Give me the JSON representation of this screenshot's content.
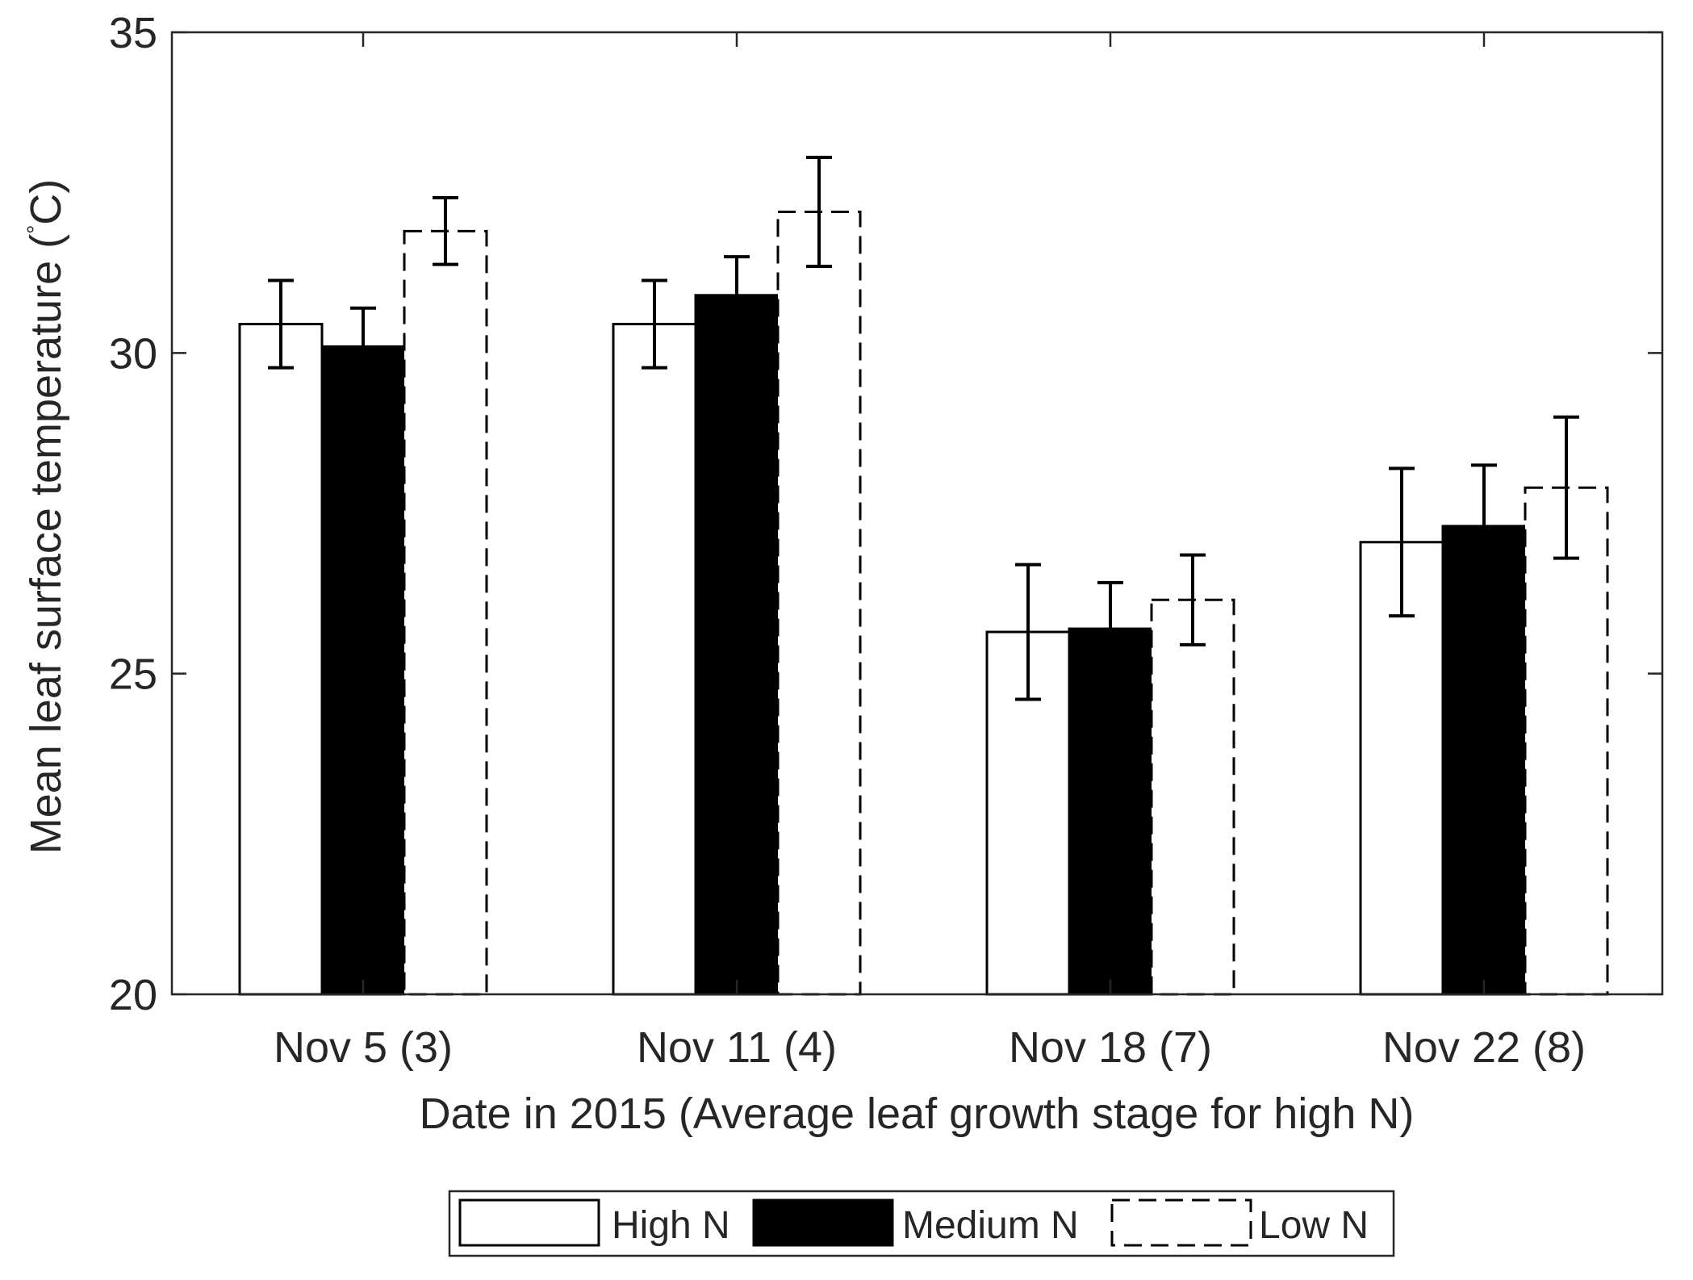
{
  "chart_data": {
    "type": "bar",
    "title": "",
    "xlabel": "Date in 2015 (Average  leaf growth stage for high N)",
    "ylabel": "Mean leaf surface temperature (",
    "ylabel_unit": "C)",
    "ylabel_degree_mark": "°",
    "categories": [
      "Nov 5 (3)",
      "Nov 11 (4)",
      "Nov 18 (7)",
      "Nov 22 (8)"
    ],
    "ylim": [
      20,
      35
    ],
    "yticks": [
      20,
      25,
      30,
      35
    ],
    "ytick_labels": [
      "20",
      "25",
      "30",
      "35"
    ],
    "series": [
      {
        "name": "High N",
        "style": "white-solid",
        "values": [
          30.45,
          30.45,
          25.65,
          27.05
        ],
        "error": [
          0.68,
          0.68,
          1.05,
          1.15
        ]
      },
      {
        "name": "Medium N",
        "style": "black-solid",
        "values": [
          30.1,
          30.9,
          25.7,
          27.3
        ],
        "error": [
          0.6,
          0.6,
          0.72,
          0.95
        ]
      },
      {
        "name": "Low N",
        "style": "white-dashed",
        "values": [
          31.9,
          32.2,
          26.15,
          27.9
        ],
        "error": [
          0.52,
          0.85,
          0.7,
          1.1
        ]
      }
    ],
    "legend": {
      "position": "bottom-center",
      "entries": [
        "High N",
        "Medium N",
        "Low N"
      ]
    },
    "colors": {
      "axis": "#262626",
      "bar_edge": "#000000",
      "medium_fill": "#000000",
      "light_fill": "#ffffff"
    }
  }
}
